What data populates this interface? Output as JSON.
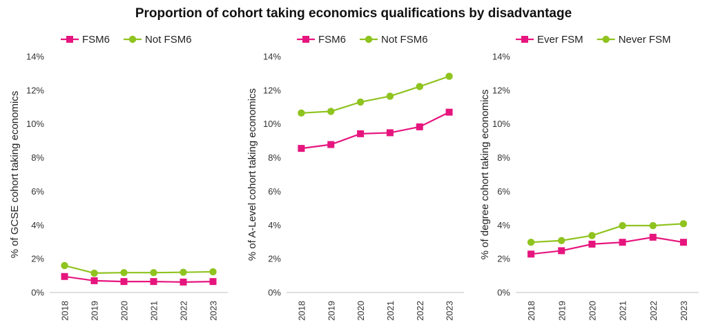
{
  "title": "Proportion of cohort taking economics qualifications by disadvantage",
  "colors": {
    "disadvantaged": "#e6157e",
    "non_disadvantaged": "#8fc31f",
    "axis": "#bfbfbf"
  },
  "chart_data": [
    {
      "type": "line",
      "categories": [
        "2018",
        "2019",
        "2020",
        "2021",
        "2022",
        "2023"
      ],
      "ylabel": "% of GCSE cohort taking economics",
      "ylim": [
        0,
        14
      ],
      "yticks": [
        "0%",
        "2%",
        "4%",
        "6%",
        "8%",
        "10%",
        "12%",
        "14%"
      ],
      "grid": false,
      "legend_position": "top-left",
      "series": [
        {
          "name": "FSM6",
          "marker": "square",
          "values": [
            0.95,
            0.7,
            0.65,
            0.65,
            0.62,
            0.65
          ]
        },
        {
          "name": "Not FSM6",
          "marker": "circle",
          "values": [
            1.6,
            1.15,
            1.18,
            1.18,
            1.2,
            1.23
          ]
        }
      ]
    },
    {
      "type": "line",
      "categories": [
        "2018",
        "2019",
        "2020",
        "2021",
        "2022",
        "2023"
      ],
      "ylabel": "% of A-Level cohort taking economics",
      "ylim": [
        0,
        14
      ],
      "yticks": [
        "0%",
        "2%",
        "4%",
        "6%",
        "8%",
        "10%",
        "12%",
        "14%"
      ],
      "grid": false,
      "legend_position": "top-left",
      "series": [
        {
          "name": "FSM6",
          "marker": "square",
          "values": [
            8.55,
            8.78,
            9.42,
            9.48,
            9.83,
            10.7
          ]
        },
        {
          "name": "Not FSM6",
          "marker": "circle",
          "values": [
            10.65,
            10.75,
            11.3,
            11.65,
            12.22,
            12.83
          ]
        }
      ]
    },
    {
      "type": "line",
      "categories": [
        "2018",
        "2019",
        "2020",
        "2021",
        "2022",
        "2023"
      ],
      "ylabel": "% of degree cohort taking economics",
      "ylim": [
        0,
        14
      ],
      "yticks": [
        "0%",
        "2%",
        "4%",
        "6%",
        "8%",
        "10%",
        "12%",
        "14%"
      ],
      "grid": false,
      "legend_position": "top-left",
      "series": [
        {
          "name": "Ever FSM",
          "marker": "square",
          "values": [
            2.28,
            2.48,
            2.87,
            2.98,
            3.28,
            2.98
          ]
        },
        {
          "name": "Never FSM",
          "marker": "circle",
          "values": [
            2.98,
            3.08,
            3.38,
            3.97,
            3.97,
            4.08
          ]
        }
      ]
    }
  ]
}
